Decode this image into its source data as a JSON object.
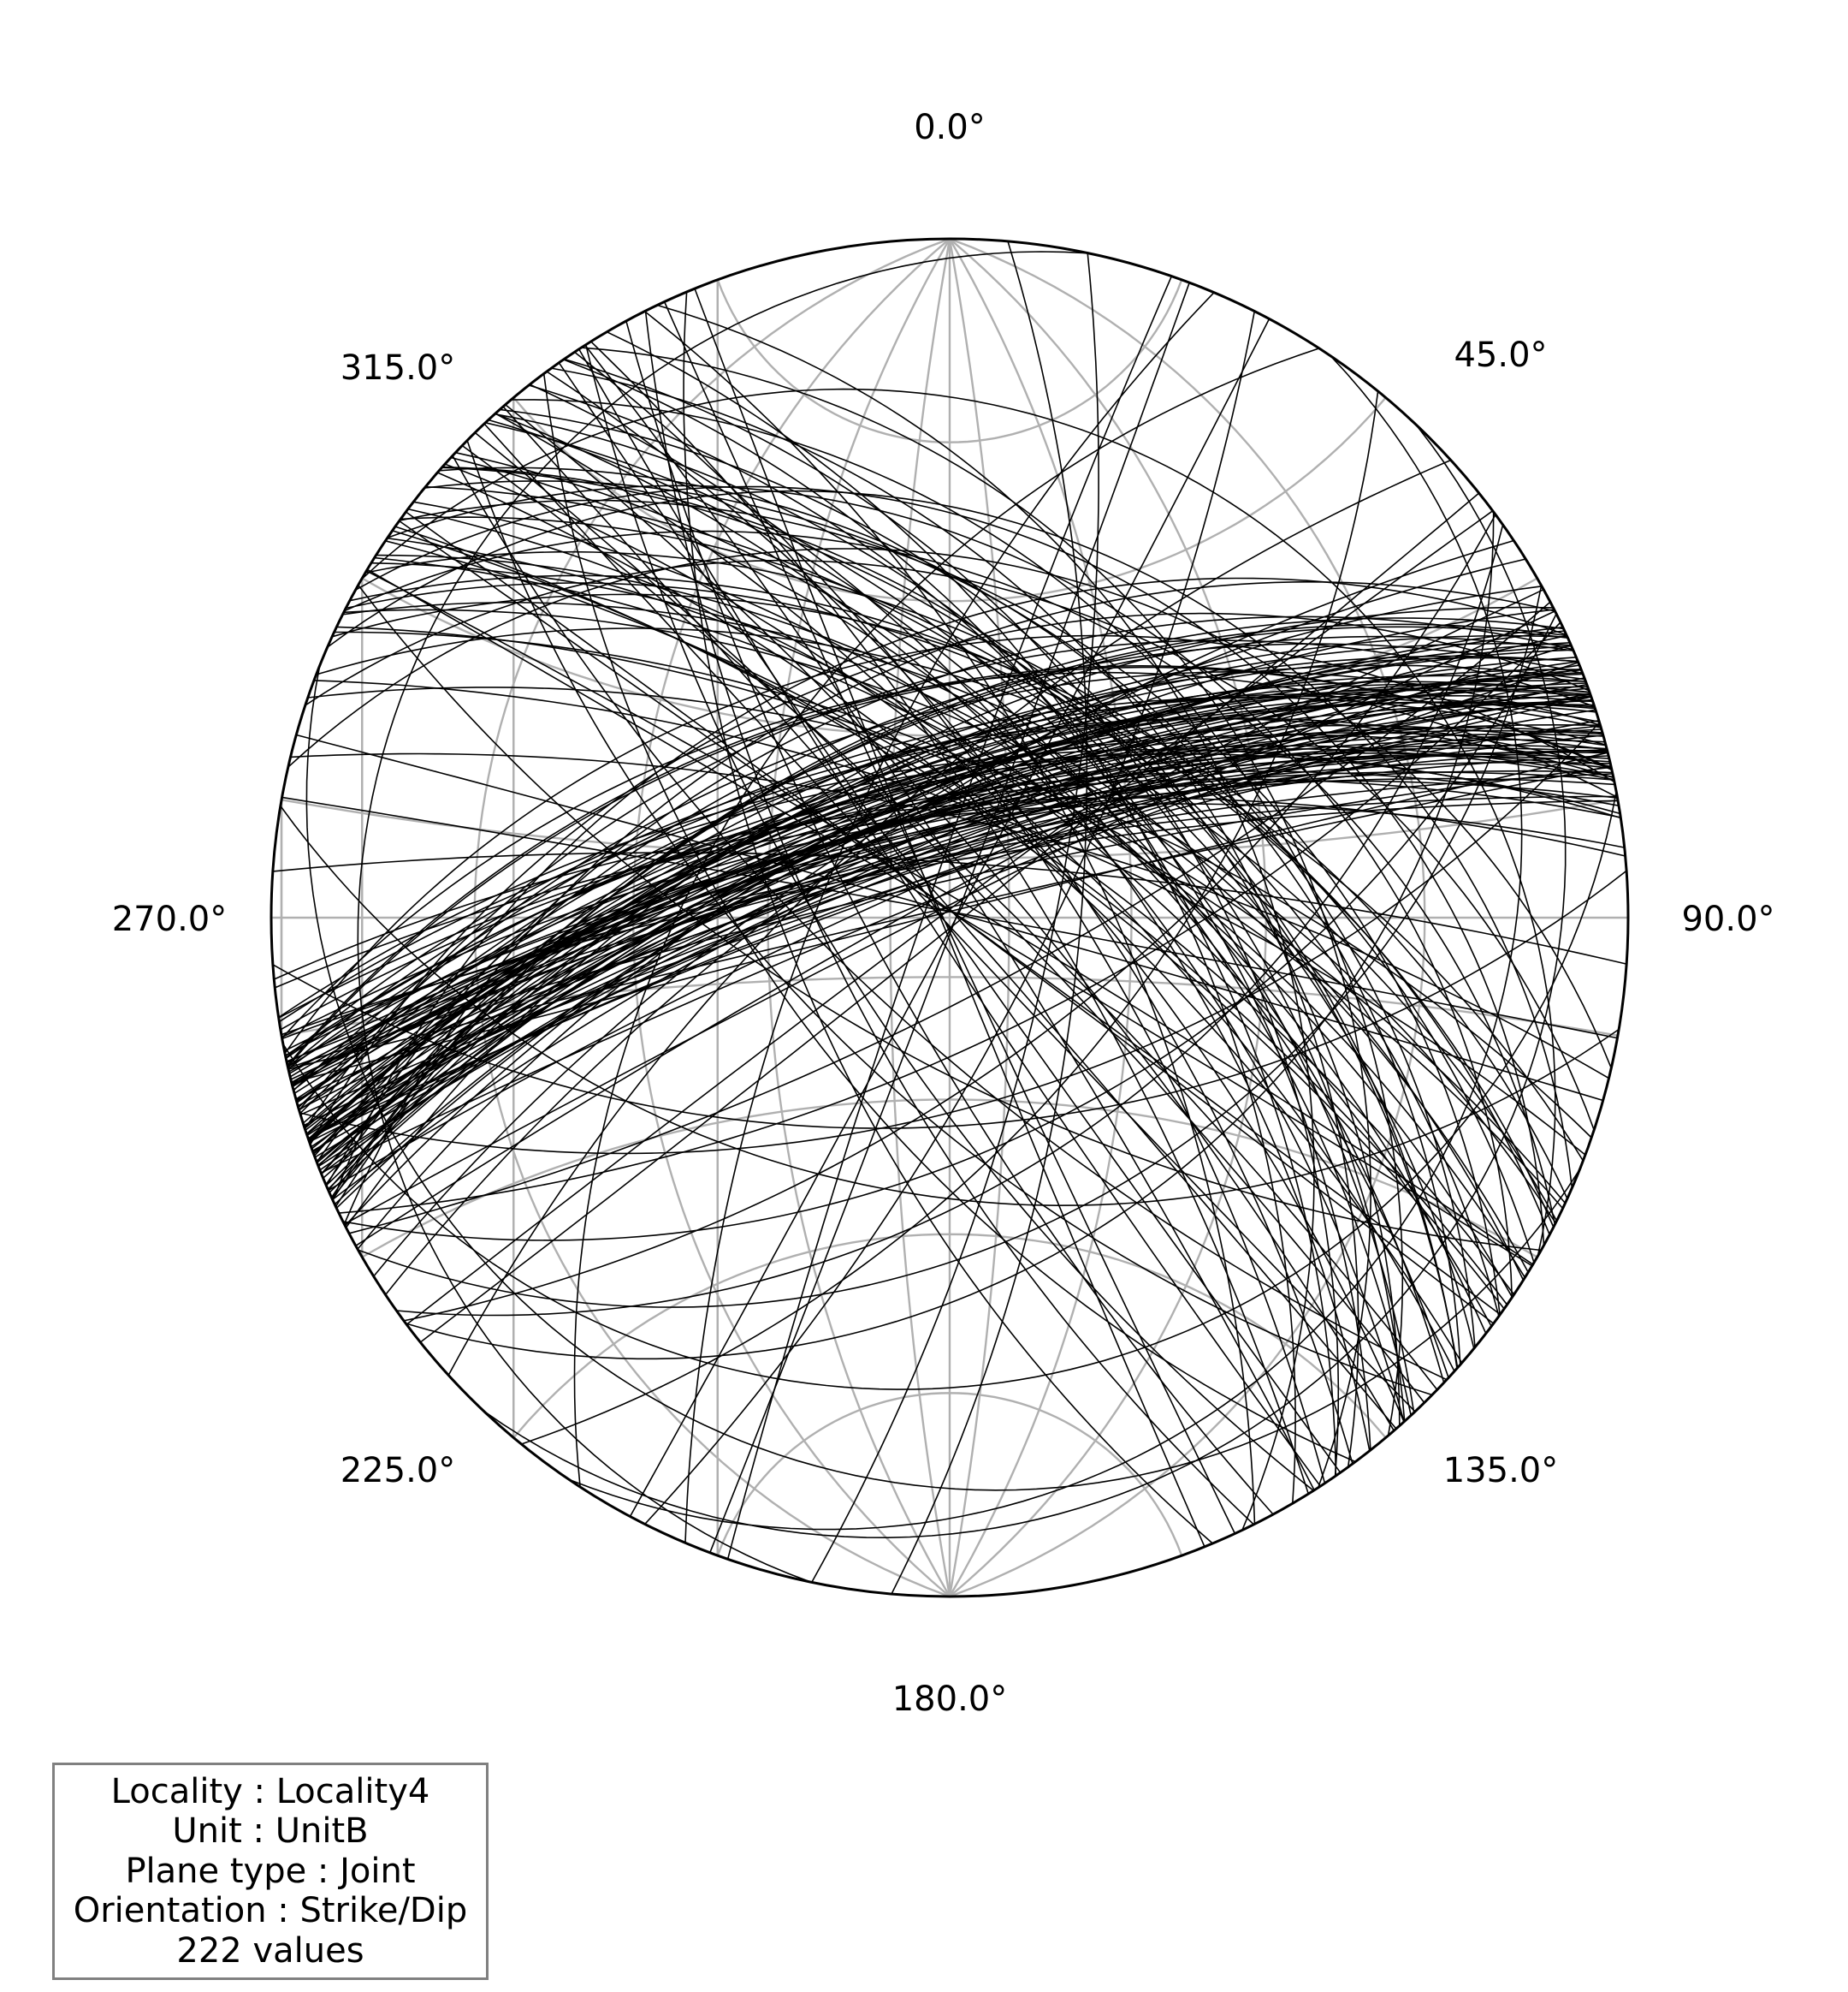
{
  "chart_data": {
    "type": "stereonet",
    "projection": "equal-angle (stereographic), lower hemisphere",
    "grid": true,
    "azimuth_tick_labels": [
      "0.0°",
      "45.0°",
      "90.0°",
      "135.0°",
      "180.0°",
      "225.0°",
      "270.0°",
      "315.0°"
    ],
    "annotation": {
      "locality": "Locality : Locality4",
      "unit": "Unit : UnitB",
      "plane_type": "Plane type : Joint",
      "orientation": "Orientation : Strike/Dip",
      "count": "222 values"
    },
    "planes_approx": {
      "note_strike": "strike (deg)",
      "families": [
        {
          "strike": 252,
          "dip": 70,
          "n": 110,
          "strike_spread": 6,
          "dip_spread": 8
        },
        {
          "strike": 310,
          "dip": 62,
          "n": 70,
          "strike_spread": 12,
          "dip_spread": 14
        },
        {
          "strike": 30,
          "dip": 70,
          "n": 12,
          "strike_spread": 25,
          "dip_spread": 15
        },
        {
          "strike": 150,
          "dip": 78,
          "n": 10,
          "strike_spread": 20,
          "dip_spread": 10
        },
        {
          "strike": 90,
          "dip": 45,
          "n": 10,
          "strike_spread": 60,
          "dip_spread": 30
        },
        {
          "strike": 200,
          "dip": 75,
          "n": 10,
          "strike_spread": 40,
          "dip_spread": 15
        }
      ]
    },
    "colors": {
      "plane": "#000000",
      "grid": "#b0b0b0",
      "primitive": "#000000",
      "annotation_border": "#808080"
    }
  }
}
